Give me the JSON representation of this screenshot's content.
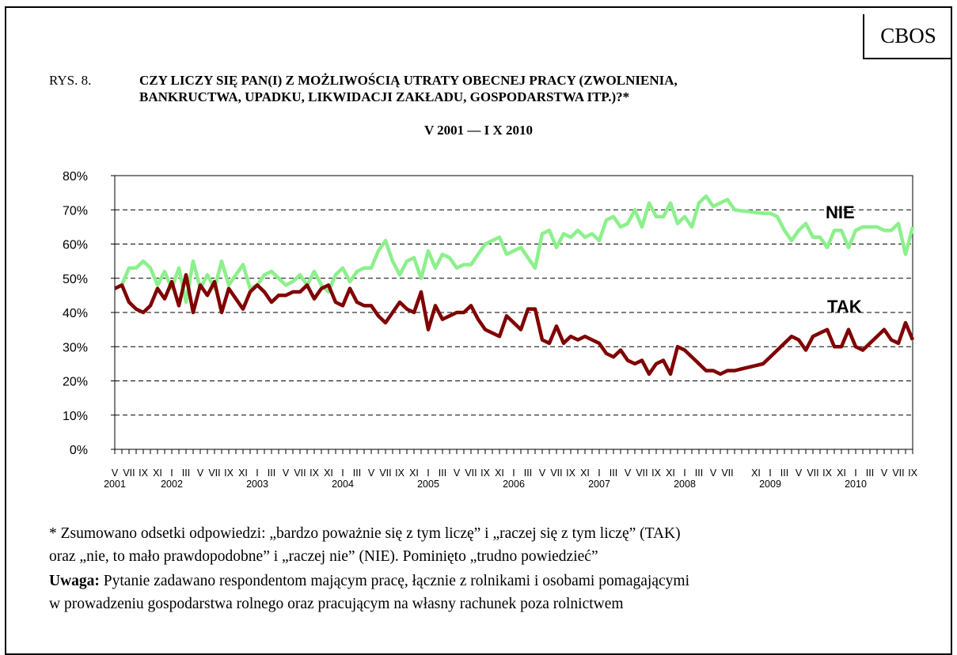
{
  "header": {
    "badge": "CBOS",
    "figure_number": "RYS. 8.",
    "title_lines": [
      "CZY LICZY SIĘ PAN(I) Z MOŻLIWOŚCIĄ UTRATY OBECNEJ PRACY (ZWOLNIENIA,",
      "BANKRUCTWA, UPADKU, LIKWIDACJI ZAKŁADU, GOSPODARSTWA ITP.)?*"
    ],
    "period": "V 2001 — I X 2010"
  },
  "chart_data": {
    "type": "line",
    "categories": [
      "V",
      null,
      "VII",
      null,
      "IX",
      null,
      "XI",
      null,
      "I",
      null,
      "III",
      null,
      "V",
      null,
      "VII",
      null,
      "IX",
      null,
      "XI",
      null,
      "I",
      null,
      "III",
      null,
      "V",
      null,
      "VII",
      null,
      "IX",
      null,
      "XI",
      null,
      "I",
      null,
      "III",
      null,
      "V",
      null,
      "VII",
      null,
      "IX",
      null,
      "XI",
      null,
      "I",
      null,
      "III",
      null,
      "V",
      null,
      "VII",
      null,
      "IX",
      null,
      "XI",
      null,
      "I",
      null,
      "III",
      null,
      "V",
      null,
      "VII",
      null,
      "IX",
      null,
      "XI",
      null,
      "I",
      null,
      "III",
      null,
      "V",
      null,
      "VII",
      null,
      "IX",
      null,
      "XI",
      null,
      "I",
      null,
      "III",
      null,
      "V",
      null,
      "VII",
      null,
      null,
      null,
      "XI",
      null,
      "I",
      null,
      "III",
      null,
      "V",
      null,
      "VII",
      null,
      "IX",
      null,
      "XI",
      null,
      "I",
      null,
      "III",
      null,
      "V",
      null,
      "VII",
      null,
      "IX"
    ],
    "years": [
      "2001",
      null,
      null,
      null,
      null,
      null,
      null,
      null,
      "2002",
      null,
      null,
      null,
      null,
      null,
      null,
      null,
      null,
      null,
      null,
      null,
      "2003",
      null,
      null,
      null,
      null,
      null,
      null,
      null,
      null,
      null,
      null,
      null,
      "2004",
      null,
      null,
      null,
      null,
      null,
      null,
      null,
      null,
      null,
      null,
      null,
      "2005",
      null,
      null,
      null,
      null,
      null,
      null,
      null,
      null,
      null,
      null,
      null,
      "2006",
      null,
      null,
      null,
      null,
      null,
      null,
      null,
      null,
      null,
      null,
      null,
      "2007",
      null,
      null,
      null,
      null,
      null,
      null,
      null,
      null,
      null,
      null,
      null,
      "2008",
      null,
      null,
      null,
      null,
      null,
      null,
      null,
      null,
      null,
      null,
      null,
      "2009",
      null,
      null,
      null,
      null,
      null,
      null,
      null,
      null,
      null,
      null,
      null,
      "2010",
      null,
      null,
      null,
      null,
      null,
      null,
      null,
      null
    ],
    "series": [
      {
        "name": "NIE",
        "color": "#8cf08c",
        "values": [
          47,
          48,
          53,
          53,
          55,
          53,
          48,
          52,
          47,
          53,
          43,
          55,
          47,
          51,
          47,
          55,
          48,
          51,
          54,
          47,
          48,
          51,
          52,
          50,
          48,
          49,
          51,
          48,
          52,
          48,
          46,
          51,
          53,
          49,
          52,
          53,
          53,
          58,
          61,
          55,
          51,
          55,
          56,
          50,
          58,
          53,
          57,
          56,
          53,
          54,
          54,
          57,
          60,
          61,
          62,
          57,
          58,
          59,
          56,
          53,
          63,
          64,
          59,
          63,
          62,
          64,
          62,
          63,
          61,
          67,
          68,
          65,
          66,
          70,
          65,
          72,
          68,
          68,
          72,
          66,
          68,
          65,
          72,
          74,
          71,
          72,
          73,
          70,
          69.7,
          69.5,
          69.2,
          69,
          69,
          68,
          64,
          61,
          64,
          66,
          62,
          62,
          59,
          64,
          64,
          59,
          64,
          65,
          65,
          65,
          64,
          64,
          66,
          57,
          65
        ]
      },
      {
        "name": "TAK",
        "color": "#800000",
        "values": [
          47,
          48,
          43,
          41,
          40,
          42,
          47,
          44,
          49,
          42,
          51,
          40,
          48,
          45,
          49,
          40,
          47,
          44,
          41,
          46,
          48,
          46,
          43,
          45,
          45,
          46,
          46,
          48,
          44,
          47,
          48,
          43,
          42,
          47,
          43,
          42,
          42,
          39,
          37,
          40,
          43,
          41,
          40,
          46,
          35,
          42,
          38,
          39,
          40,
          40,
          42,
          38,
          35,
          34,
          33,
          39,
          37,
          35,
          41,
          41,
          32,
          31,
          36,
          31,
          33,
          32,
          33,
          32,
          31,
          28,
          27,
          29,
          26,
          25,
          26,
          22,
          25,
          26,
          22,
          30,
          29,
          27,
          25,
          23,
          23,
          22,
          23,
          23,
          23.5,
          24,
          24.5,
          25,
          27,
          29,
          31,
          33,
          32,
          29,
          33,
          34,
          35,
          30,
          30,
          35,
          30,
          29,
          31,
          33,
          35,
          32,
          31,
          37,
          32
        ]
      }
    ],
    "ylim": [
      0,
      80
    ],
    "yticks": [
      {
        "value": 0,
        "label": "0%"
      },
      {
        "value": 10,
        "label": "10%"
      },
      {
        "value": 20,
        "label": "20%"
      },
      {
        "value": 30,
        "label": "30%"
      },
      {
        "value": 40,
        "label": "40%"
      },
      {
        "value": 50,
        "label": "50%"
      },
      {
        "value": 60,
        "label": "60%"
      },
      {
        "value": 70,
        "label": "70%"
      },
      {
        "value": 80,
        "label": "80%"
      }
    ],
    "grid": true
  },
  "footnote": {
    "lines": [
      "* Zsumowano odsetki odpowiedzi: „bardzo poważnie się z tym liczę” i „raczej się z tym liczę” (TAK)",
      "oraz „nie, to mało prawdopodobne” i „raczej nie” (NIE). Pominięto „trudno powiedzieć”"
    ],
    "note_label": "Uwaga:",
    "note_lines": [
      "Pytanie zadawano respondentom mającym pracę, łącznie z rolnikami i osobami pomagającymi",
      "w prowadzeniu gospodarstwa rolnego oraz pracującym na własny rachunek poza rolnictwem"
    ]
  }
}
